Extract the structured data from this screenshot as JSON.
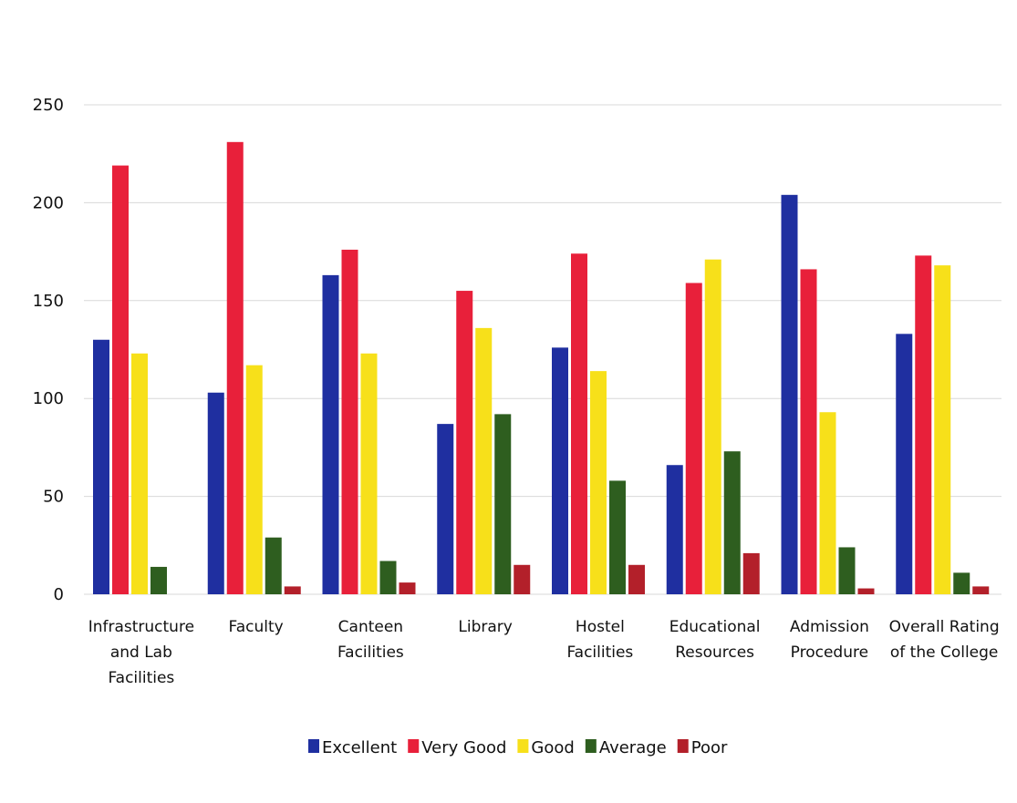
{
  "chart_data": {
    "type": "bar",
    "title": "",
    "xlabel": "",
    "ylabel": "",
    "ylim": [
      0,
      250
    ],
    "yticks": [
      0,
      50,
      100,
      150,
      200,
      250
    ],
    "grid": true,
    "legend_position": "bottom",
    "categories": [
      "Infrastructure and Lab Facilities",
      "Faculty",
      "Canteen Facilities",
      "Library",
      "Hostel Facilities",
      "Educational Resources",
      "Admission Procedure",
      "Overall Rating of the College"
    ],
    "category_lines": [
      [
        "Infrastructure",
        "and Lab",
        "Facilities"
      ],
      [
        "Faculty"
      ],
      [
        "Canteen",
        "Facilities"
      ],
      [
        "Library"
      ],
      [
        "Hostel",
        "Facilities"
      ],
      [
        "Educational",
        "Resources"
      ],
      [
        "Admission",
        "Procedure"
      ],
      [
        "Overall Rating",
        "of the College"
      ]
    ],
    "series": [
      {
        "name": "Excellent",
        "color": "#1f2fa0",
        "values": [
          130,
          103,
          163,
          87,
          126,
          66,
          204,
          133
        ]
      },
      {
        "name": "Very Good",
        "color": "#e8203a",
        "values": [
          219,
          231,
          176,
          155,
          174,
          159,
          166,
          173
        ]
      },
      {
        "name": "Good",
        "color": "#f7e01a",
        "values": [
          123,
          117,
          123,
          136,
          114,
          171,
          93,
          168
        ]
      },
      {
        "name": "Average",
        "color": "#2e5e1f",
        "values": [
          14,
          29,
          17,
          92,
          58,
          73,
          24,
          11
        ]
      },
      {
        "name": "Poor",
        "color": "#b3202a",
        "values": [
          0,
          4,
          6,
          15,
          15,
          21,
          3,
          4
        ]
      }
    ]
  }
}
